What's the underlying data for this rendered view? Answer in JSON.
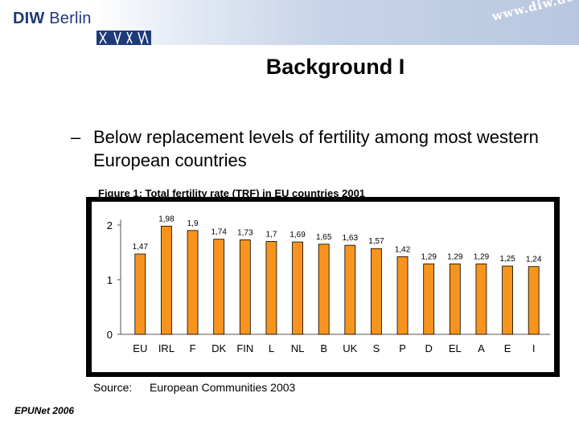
{
  "header": {
    "logo_bold": "DIW",
    "logo_rest": " Berlin",
    "url_mark": "www.diw.de",
    "brand_color": "#1d3a7a"
  },
  "slide": {
    "title": "Background I",
    "bullet_dash": "–",
    "bullet_text": "Below replacement levels of fertility among most western European countries",
    "figure_caption": "Figure 1: Total fertility rate (TRF) in EU countries 2001",
    "source_label": "Source:",
    "source_text": "European Communities 2003",
    "footer": "EPUNet 2006"
  },
  "chart_data": {
    "type": "bar",
    "title": "Figure 1: Total fertility rate (TRF) in EU countries 2001",
    "categories": [
      "EU",
      "IRL",
      "F",
      "DK",
      "FIN",
      "L",
      "NL",
      "B",
      "UK",
      "S",
      "P",
      "D",
      "EL",
      "A",
      "E",
      "I"
    ],
    "values": [
      1.47,
      1.98,
      1.9,
      1.74,
      1.73,
      1.7,
      1.69,
      1.65,
      1.63,
      1.57,
      1.42,
      1.29,
      1.29,
      1.29,
      1.25,
      1.24
    ],
    "value_labels": [
      "1,47",
      "1,98",
      "1,9",
      "1,74",
      "1,73",
      "1,7",
      "1,69",
      "1,65",
      "1,63",
      "1,57",
      "1,42",
      "1,29",
      "1,29",
      "1,29",
      "1,25",
      "1,24"
    ],
    "yticks": [
      "0",
      "1",
      "2"
    ],
    "ylim": [
      0,
      2.1
    ],
    "xlabel": "",
    "ylabel": "",
    "grid": false,
    "bar_color": "#f7941d",
    "bar_edge_color": "#000000"
  }
}
